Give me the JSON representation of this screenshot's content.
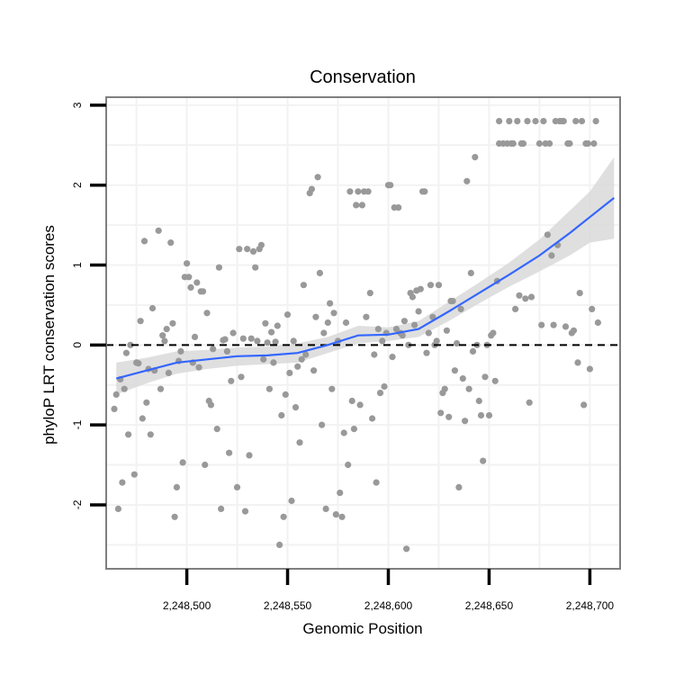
{
  "chart_data": {
    "type": "scatter",
    "title": "Conservation",
    "xlabel": "Genomic Position",
    "ylabel": "phyloP LRT conservation scores",
    "xlim": [
      2248460,
      2248715
    ],
    "ylim": [
      -2.8,
      3.1
    ],
    "x_ticks": [
      2248500,
      2248550,
      2248600,
      2248650,
      2248700
    ],
    "x_tick_labels": [
      "2,248,500",
      "2,248,550",
      "2,248,600",
      "2,248,650",
      "2,248,700"
    ],
    "y_ticks": [
      -2,
      -1,
      0,
      1,
      2,
      3
    ],
    "y_tick_labels": [
      "-2",
      "-1",
      "0",
      "1",
      "2",
      "3"
    ],
    "grid": true,
    "reference_line": {
      "y": 0,
      "style": "dashed",
      "color": "#000000"
    },
    "colors": {
      "points": "#999999",
      "smooth": "#3366ff",
      "ribbon": "#d9d9d9",
      "border": "#7f7f7f",
      "grid": "#f2f2f2"
    },
    "smooth": {
      "x": [
        2248465,
        2248480,
        2248495,
        2248510,
        2248525,
        2248540,
        2248555,
        2248570,
        2248585,
        2248600,
        2248615,
        2248630,
        2248645,
        2248660,
        2248675,
        2248690,
        2248700,
        2248712
      ],
      "y": [
        -0.42,
        -0.32,
        -0.22,
        -0.18,
        -0.14,
        -0.13,
        -0.1,
        0.0,
        0.12,
        0.13,
        0.2,
        0.42,
        0.65,
        0.88,
        1.12,
        1.4,
        1.6,
        1.84
      ],
      "lower": [
        -0.62,
        -0.48,
        -0.36,
        -0.3,
        -0.26,
        -0.24,
        -0.22,
        -0.1,
        0.02,
        0.05,
        0.1,
        0.3,
        0.52,
        0.73,
        0.92,
        1.12,
        1.28,
        1.33
      ],
      "upper": [
        -0.22,
        -0.16,
        -0.08,
        -0.06,
        -0.03,
        -0.02,
        0.02,
        0.1,
        0.24,
        0.22,
        0.3,
        0.54,
        0.78,
        1.03,
        1.32,
        1.68,
        1.92,
        2.35
      ]
    },
    "points": [
      [
        2248464,
        -0.8
      ],
      [
        2248465,
        -0.62
      ],
      [
        2248466,
        -2.05
      ],
      [
        2248467,
        -0.43
      ],
      [
        2248468,
        -1.72
      ],
      [
        2248469,
        -0.55
      ],
      [
        2248470,
        -0.1
      ],
      [
        2248471,
        -1.12
      ],
      [
        2248472,
        0.0
      ],
      [
        2248474,
        -1.62
      ],
      [
        2248475,
        -0.22
      ],
      [
        2248476,
        -0.23
      ],
      [
        2248477,
        0.3
      ],
      [
        2248478,
        -0.92
      ],
      [
        2248479,
        1.3
      ],
      [
        2248480,
        -0.72
      ],
      [
        2248481,
        -0.3
      ],
      [
        2248482,
        -1.12
      ],
      [
        2248483,
        0.46
      ],
      [
        2248484,
        -0.32
      ],
      [
        2248486,
        1.43
      ],
      [
        2248487,
        -0.55
      ],
      [
        2248488,
        0.12
      ],
      [
        2248489,
        0.05
      ],
      [
        2248490,
        0.2
      ],
      [
        2248491,
        -0.35
      ],
      [
        2248492,
        1.28
      ],
      [
        2248493,
        0.27
      ],
      [
        2248494,
        -2.15
      ],
      [
        2248495,
        -1.78
      ],
      [
        2248496,
        -0.2
      ],
      [
        2248497,
        -0.08
      ],
      [
        2248498,
        -1.47
      ],
      [
        2248499,
        0.85
      ],
      [
        2248500,
        1.02
      ],
      [
        2248501,
        0.85
      ],
      [
        2248502,
        0.72
      ],
      [
        2248503,
        -0.22
      ],
      [
        2248504,
        0.1
      ],
      [
        2248505,
        0.78
      ],
      [
        2248506,
        -0.28
      ],
      [
        2248507,
        0.67
      ],
      [
        2248508,
        0.67
      ],
      [
        2248509,
        -1.5
      ],
      [
        2248510,
        0.4
      ],
      [
        2248511,
        -0.7
      ],
      [
        2248512,
        -0.75
      ],
      [
        2248513,
        -0.05
      ],
      [
        2248515,
        -1.05
      ],
      [
        2248516,
        0.97
      ],
      [
        2248517,
        -2.05
      ],
      [
        2248518,
        0.06
      ],
      [
        2248519,
        0.07
      ],
      [
        2248520,
        -0.08
      ],
      [
        2248521,
        -1.35
      ],
      [
        2248522,
        -0.45
      ],
      [
        2248523,
        0.15
      ],
      [
        2248525,
        -1.78
      ],
      [
        2248526,
        1.2
      ],
      [
        2248527,
        -0.4
      ],
      [
        2248528,
        0.08
      ],
      [
        2248529,
        -2.08
      ],
      [
        2248530,
        1.2
      ],
      [
        2248531,
        -1.38
      ],
      [
        2248532,
        0.08
      ],
      [
        2248533,
        1.17
      ],
      [
        2248534,
        0.97
      ],
      [
        2248535,
        0.05
      ],
      [
        2248536,
        1.2
      ],
      [
        2248537,
        1.25
      ],
      [
        2248538,
        -0.18
      ],
      [
        2248539,
        0.27
      ],
      [
        2248540,
        0.03
      ],
      [
        2248541,
        -0.55
      ],
      [
        2248542,
        0.16
      ],
      [
        2248543,
        -0.22
      ],
      [
        2248544,
        0.04
      ],
      [
        2248545,
        0.24
      ],
      [
        2248546,
        -2.5
      ],
      [
        2248547,
        -0.88
      ],
      [
        2248548,
        -2.15
      ],
      [
        2248549,
        -0.62
      ],
      [
        2248550,
        0.38
      ],
      [
        2248551,
        -0.35
      ],
      [
        2248552,
        -1.95
      ],
      [
        2248553,
        0.05
      ],
      [
        2248554,
        -0.78
      ],
      [
        2248555,
        -0.27
      ],
      [
        2248556,
        -1.22
      ],
      [
        2248557,
        -0.18
      ],
      [
        2248558,
        0.75
      ],
      [
        2248559,
        -0.12
      ],
      [
        2248561,
        1.9
      ],
      [
        2248562,
        1.95
      ],
      [
        2248563,
        -0.32
      ],
      [
        2248564,
        0.35
      ],
      [
        2248565,
        2.1
      ],
      [
        2248566,
        0.9
      ],
      [
        2248567,
        -1.0
      ],
      [
        2248568,
        0.15
      ],
      [
        2248569,
        -2.05
      ],
      [
        2248570,
        0.28
      ],
      [
        2248571,
        0.52
      ],
      [
        2248572,
        -0.55
      ],
      [
        2248573,
        0.4
      ],
      [
        2248574,
        -2.12
      ],
      [
        2248575,
        0.05
      ],
      [
        2248576,
        -1.85
      ],
      [
        2248577,
        -2.15
      ],
      [
        2248578,
        -1.1
      ],
      [
        2248579,
        0.28
      ],
      [
        2248580,
        -1.5
      ],
      [
        2248581,
        1.92
      ],
      [
        2248582,
        -0.7
      ],
      [
        2248583,
        -1.05
      ],
      [
        2248584,
        1.75
      ],
      [
        2248585,
        1.92
      ],
      [
        2248586,
        -0.75
      ],
      [
        2248587,
        1.75
      ],
      [
        2248588,
        1.92
      ],
      [
        2248589,
        0.35
      ],
      [
        2248590,
        1.92
      ],
      [
        2248591,
        0.65
      ],
      [
        2248592,
        -0.92
      ],
      [
        2248593,
        -0.12
      ],
      [
        2248594,
        -1.72
      ],
      [
        2248595,
        0.2
      ],
      [
        2248596,
        -0.6
      ],
      [
        2248597,
        0.05
      ],
      [
        2248598,
        -0.52
      ],
      [
        2248599,
        0.15
      ],
      [
        2248600,
        2.0
      ],
      [
        2248601,
        2.0
      ],
      [
        2248602,
        -0.15
      ],
      [
        2248603,
        1.72
      ],
      [
        2248604,
        0.2
      ],
      [
        2248605,
        1.72
      ],
      [
        2248606,
        0.15
      ],
      [
        2248607,
        0.12
      ],
      [
        2248608,
        0.3
      ],
      [
        2248609,
        -2.55
      ],
      [
        2248610,
        0.0
      ],
      [
        2248611,
        0.65
      ],
      [
        2248612,
        0.6
      ],
      [
        2248613,
        0.25
      ],
      [
        2248614,
        0.68
      ],
      [
        2248615,
        0.42
      ],
      [
        2248616,
        0.7
      ],
      [
        2248617,
        1.92
      ],
      [
        2248618,
        1.92
      ],
      [
        2248619,
        -0.1
      ],
      [
        2248620,
        0.15
      ],
      [
        2248621,
        0.75
      ],
      [
        2248622,
        0.35
      ],
      [
        2248623,
        0.0
      ],
      [
        2248624,
        0.05
      ],
      [
        2248625,
        0.75
      ],
      [
        2248626,
        -0.85
      ],
      [
        2248627,
        -0.6
      ],
      [
        2248628,
        -0.55
      ],
      [
        2248629,
        0.18
      ],
      [
        2248630,
        -0.9
      ],
      [
        2248631,
        0.55
      ],
      [
        2248632,
        0.55
      ],
      [
        2248633,
        -0.32
      ],
      [
        2248634,
        0.02
      ],
      [
        2248635,
        -1.78
      ],
      [
        2248636,
        0.45
      ],
      [
        2248637,
        -0.42
      ],
      [
        2248638,
        -0.95
      ],
      [
        2248639,
        2.05
      ],
      [
        2248640,
        -0.55
      ],
      [
        2248641,
        0.9
      ],
      [
        2248642,
        -0.08
      ],
      [
        2248643,
        2.35
      ],
      [
        2248644,
        0.0
      ],
      [
        2248645,
        -0.7
      ],
      [
        2248646,
        -0.88
      ],
      [
        2248647,
        -1.45
      ],
      [
        2248648,
        -0.4
      ],
      [
        2248649,
        0.0
      ],
      [
        2248650,
        -0.88
      ],
      [
        2248651,
        0.12
      ],
      [
        2248652,
        0.15
      ],
      [
        2248653,
        -0.45
      ],
      [
        2248654,
        0.8
      ],
      [
        2248655,
        2.52
      ],
      [
        2248655,
        2.8
      ],
      [
        2248657,
        2.52
      ],
      [
        2248659,
        2.52
      ],
      [
        2248660,
        2.8
      ],
      [
        2248661,
        2.52
      ],
      [
        2248662,
        2.52
      ],
      [
        2248663,
        0.45
      ],
      [
        2248664,
        2.8
      ],
      [
        2248665,
        0.62
      ],
      [
        2248666,
        2.52
      ],
      [
        2248667,
        2.52
      ],
      [
        2248668,
        0.58
      ],
      [
        2248669,
        2.8
      ],
      [
        2248670,
        -0.72
      ],
      [
        2248671,
        0.6
      ],
      [
        2248673,
        2.8
      ],
      [
        2248675,
        2.52
      ],
      [
        2248676,
        0.25
      ],
      [
        2248677,
        2.8
      ],
      [
        2248678,
        2.52
      ],
      [
        2248679,
        1.38
      ],
      [
        2248680,
        2.52
      ],
      [
        2248681,
        1.12
      ],
      [
        2248682,
        0.25
      ],
      [
        2248683,
        2.8
      ],
      [
        2248684,
        1.25
      ],
      [
        2248685,
        2.8
      ],
      [
        2248686,
        2.8
      ],
      [
        2248687,
        2.8
      ],
      [
        2248688,
        0.23
      ],
      [
        2248689,
        2.52
      ],
      [
        2248690,
        2.52
      ],
      [
        2248691,
        0.15
      ],
      [
        2248692,
        0.18
      ],
      [
        2248693,
        2.8
      ],
      [
        2248694,
        -0.22
      ],
      [
        2248695,
        0.65
      ],
      [
        2248696,
        2.8
      ],
      [
        2248697,
        -0.75
      ],
      [
        2248698,
        2.52
      ],
      [
        2248699,
        2.52
      ],
      [
        2248700,
        -0.3
      ],
      [
        2248701,
        0.45
      ],
      [
        2248702,
        2.52
      ],
      [
        2248703,
        2.8
      ],
      [
        2248704,
        0.28
      ]
    ]
  }
}
